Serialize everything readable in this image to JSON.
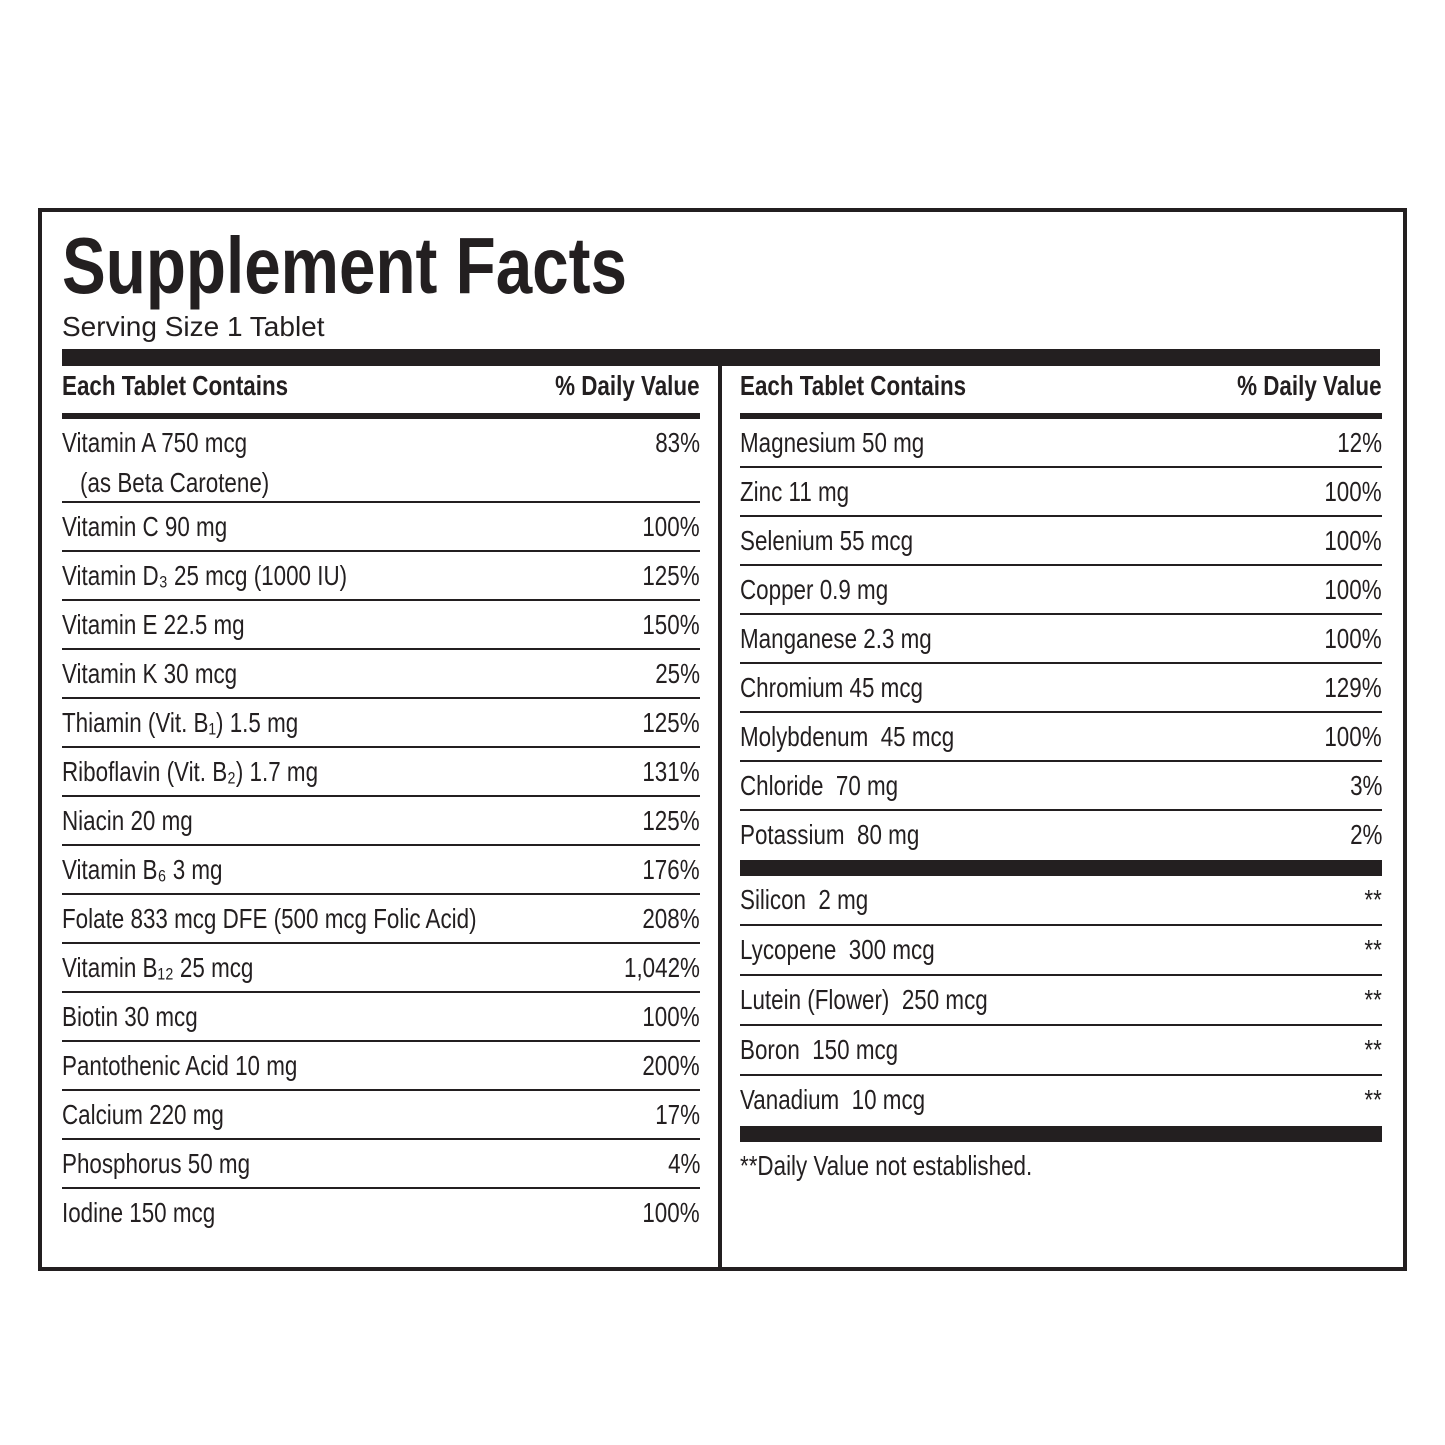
{
  "title": "Supplement Facts",
  "serving_size": "Serving Size 1 Tablet",
  "left": {
    "header": {
      "name": "Each Tablet Contains",
      "dv": "% Daily Value"
    },
    "rows": [
      {
        "name": "Vitamin A 750 mcg",
        "sub": "(as Beta Carotene)",
        "dv": "83%"
      },
      {
        "name": "Vitamin C 90 mg",
        "dv": "100%"
      },
      {
        "name": "Vitamin D₃ 25 mcg (1000 IU)",
        "dv": "125%"
      },
      {
        "name": "Vitamin E 22.5 mg",
        "dv": "150%"
      },
      {
        "name": "Vitamin K 30 mcg",
        "dv": "25%"
      },
      {
        "name": "Thiamin (Vit. B₁) 1.5 mg",
        "dv": "125%"
      },
      {
        "name": "Riboflavin (Vit. B₂) 1.7 mg",
        "dv": "131%"
      },
      {
        "name": "Niacin 20 mg",
        "dv": "125%"
      },
      {
        "name": "Vitamin B₆ 3 mg",
        "dv": "176%"
      },
      {
        "name": "Folate 833 mcg DFE (500 mcg Folic Acid)",
        "dv": "208%"
      },
      {
        "name": "Vitamin B₁₂ 25 mcg",
        "dv": "1,042%"
      },
      {
        "name": "Biotin 30 mcg",
        "dv": "100%"
      },
      {
        "name": "Pantothenic Acid 10 mg",
        "dv": "200%"
      },
      {
        "name": "Calcium 220 mg",
        "dv": "17%"
      },
      {
        "name": "Phosphorus 50 mg",
        "dv": "4%"
      },
      {
        "name": "Iodine 150 mcg",
        "dv": "100%"
      }
    ]
  },
  "right": {
    "header": {
      "name": "Each Tablet Contains",
      "dv": "% Daily Value"
    },
    "rows": [
      {
        "name": "Magnesium 50 mg",
        "dv": "12%"
      },
      {
        "name": "Zinc 11 mg",
        "dv": "100%"
      },
      {
        "name": "Selenium 55 mcg",
        "dv": "100%"
      },
      {
        "name": "Copper 0.9 mg",
        "dv": "100%"
      },
      {
        "name": "Manganese 2.3 mg",
        "dv": "100%"
      },
      {
        "name": "Chromium 45 mcg",
        "dv": "129%"
      },
      {
        "name": "Molybdenum  45 mcg",
        "dv": "100%"
      },
      {
        "name": "Chloride  70 mg",
        "dv": "3%"
      },
      {
        "name": "Potassium  80 mg",
        "dv": "2%"
      }
    ],
    "other_rows": [
      {
        "name": "Silicon  2 mg",
        "dv": "**"
      },
      {
        "name": "Lycopene  300 mcg",
        "dv": "**"
      },
      {
        "name": "Lutein (Flower)  250 mcg",
        "dv": "**"
      },
      {
        "name": "Boron  150 mcg",
        "dv": "**"
      },
      {
        "name": "Vanadium  10 mcg",
        "dv": "**"
      }
    ],
    "footnote": "**Daily Value not established."
  }
}
